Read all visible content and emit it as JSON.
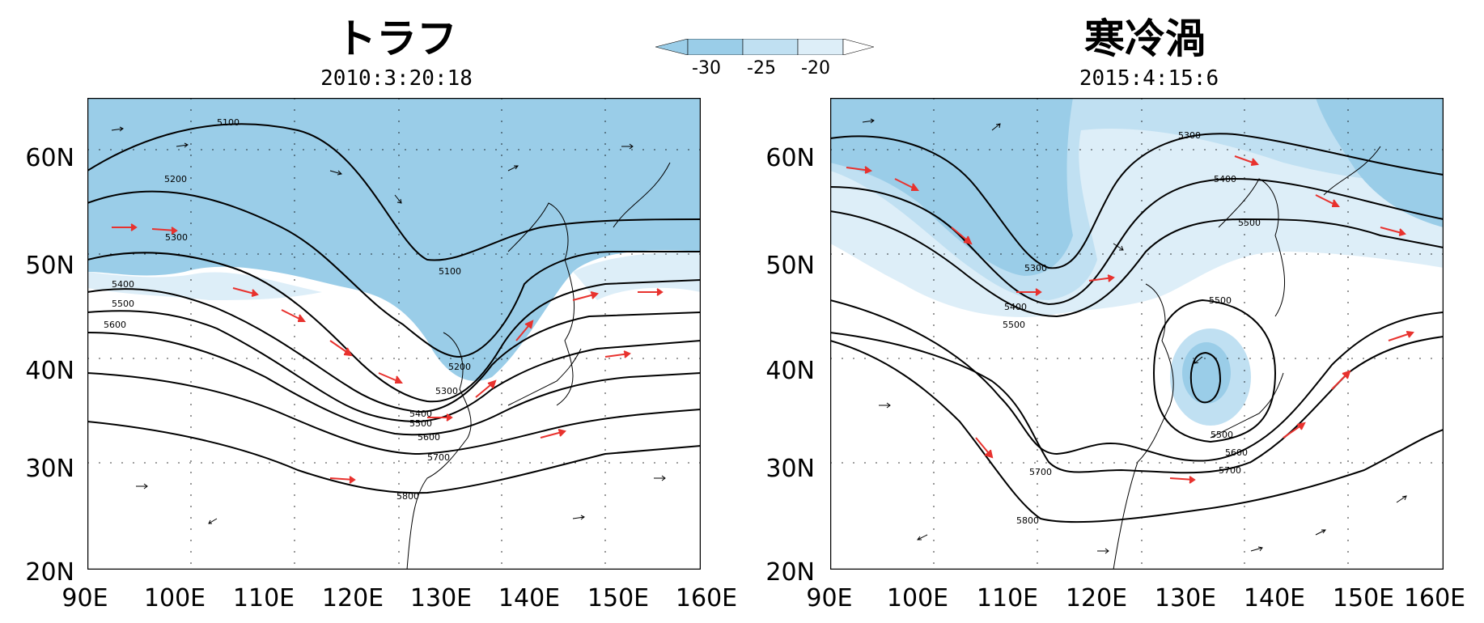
{
  "colorbar": {
    "labels": [
      "-30",
      "-25",
      "-20"
    ],
    "colors": [
      "#9acde8",
      "#c0e0f2",
      "#ddeef8"
    ]
  },
  "panels": [
    {
      "title": "トラフ",
      "subtitle": "2010:3:20:18",
      "contours": [
        {
          "label": "5100"
        },
        {
          "label": "5200"
        },
        {
          "label": "5300"
        },
        {
          "label": "5400"
        },
        {
          "label": "5500"
        },
        {
          "label": "5600"
        },
        {
          "label": "5700"
        },
        {
          "label": "5800"
        }
      ]
    },
    {
      "title": "寒冷渦",
      "subtitle": "2015:4:15:6",
      "contours": [
        {
          "label": "5300"
        },
        {
          "label": "5400"
        },
        {
          "label": "5500"
        },
        {
          "label": "5600"
        },
        {
          "label": "5700"
        },
        {
          "label": "5800"
        }
      ]
    }
  ],
  "axes": {
    "lat_labels": [
      "60N",
      "50N",
      "40N",
      "30N",
      "20N"
    ],
    "lon_labels": [
      "90E",
      "100E",
      "110E",
      "120E",
      "130E",
      "140E",
      "150E",
      "160E"
    ]
  },
  "colors": {
    "fill_cold": "#9acde8",
    "fill_mid": "#c0e0f2",
    "fill_light": "#ddeef8",
    "strong_wind": "#e8322e",
    "weak_wind": "#000000"
  }
}
